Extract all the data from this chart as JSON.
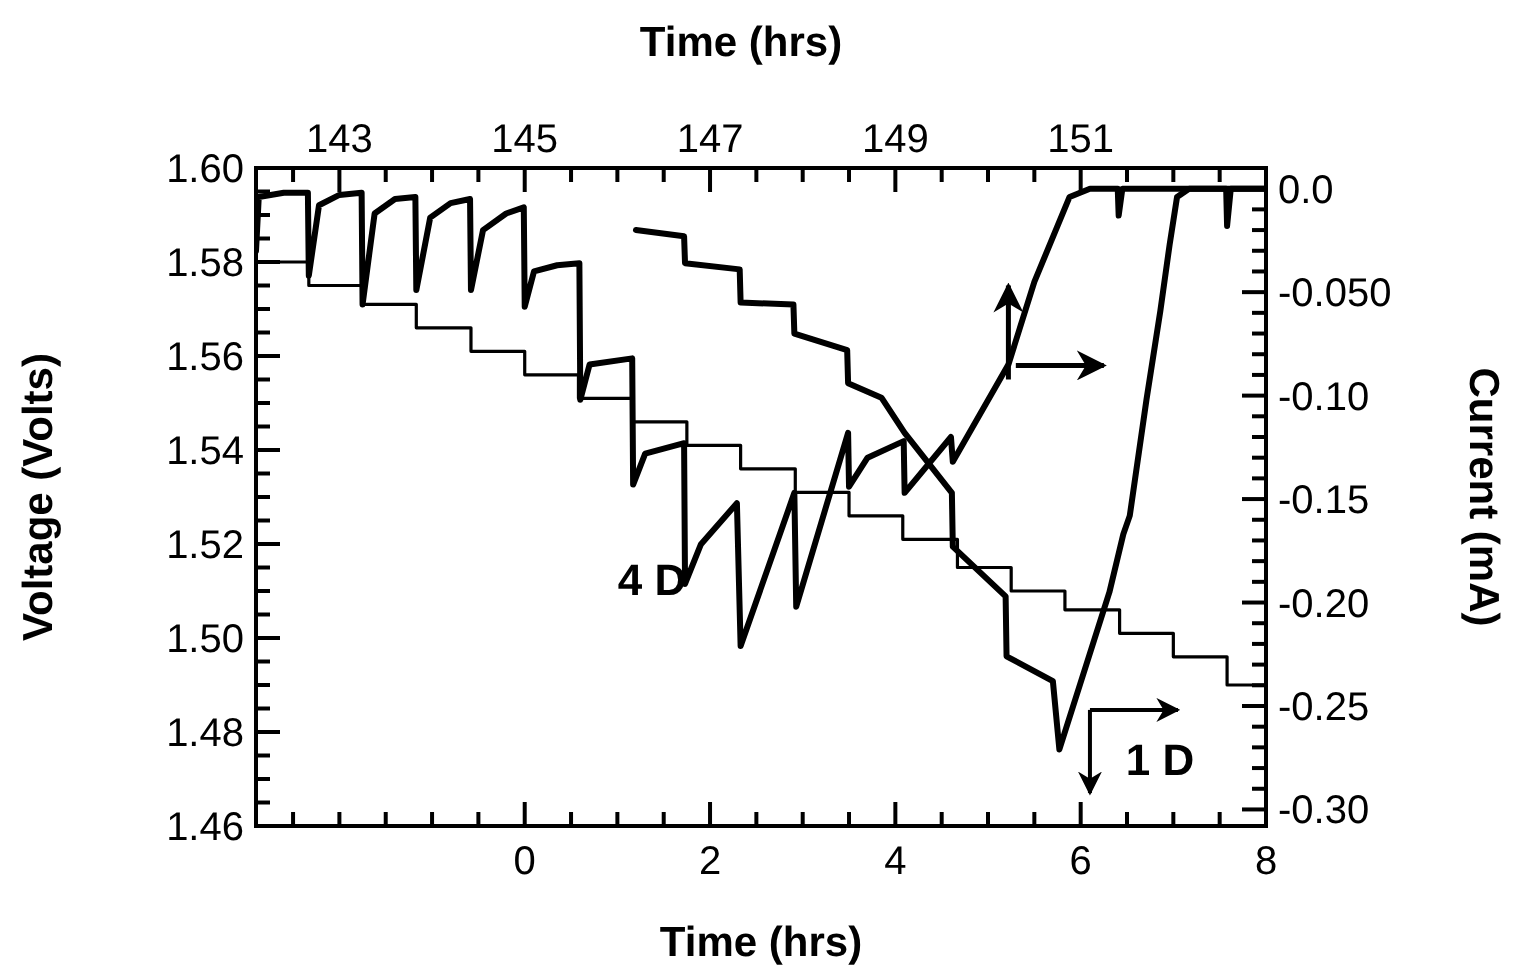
{
  "chart_data": {
    "type": "line",
    "xlabel": "Time (hrs)",
    "x2label": "Time (hrs)",
    "ylabel": "Voltage (Volts)",
    "y2label": "Current (mA)",
    "xlim": [
      -2.9,
      8
    ],
    "xticks": [
      {
        "value": -2.5,
        "label": null
      },
      {
        "value": -2,
        "label": null
      },
      {
        "value": -1.5,
        "label": null
      },
      {
        "value": -1,
        "label": null
      },
      {
        "value": -0.5,
        "label": null
      },
      0,
      {
        "value": 0.5,
        "label": null
      },
      {
        "value": 1,
        "label": null
      },
      {
        "value": 1.5,
        "label": null
      },
      2,
      {
        "value": 2.5,
        "label": null
      },
      {
        "value": 3,
        "label": null
      },
      {
        "value": 3.5,
        "label": null
      },
      4,
      {
        "value": 4.5,
        "label": null
      },
      {
        "value": 5,
        "label": null
      },
      {
        "value": 5.5,
        "label": null
      },
      6,
      {
        "value": 6.5,
        "label": null
      },
      {
        "value": 7,
        "label": null
      },
      {
        "value": 7.5,
        "label": null
      },
      8
    ],
    "x2lim": [
      142.1,
      153
    ],
    "x2ticks": [
      {
        "value": 142.5,
        "label": null
      },
      143,
      {
        "value": 143.5,
        "label": null
      },
      {
        "value": 144,
        "label": null
      },
      {
        "value": 144.5,
        "label": null
      },
      145,
      {
        "value": 145.5,
        "label": null
      },
      {
        "value": 146,
        "label": null
      },
      {
        "value": 146.5,
        "label": null
      },
      147,
      {
        "value": 147.5,
        "label": null
      },
      {
        "value": 148,
        "label": null
      },
      {
        "value": 148.5,
        "label": null
      },
      149,
      {
        "value": 149.5,
        "label": null
      },
      {
        "value": 150,
        "label": null
      },
      {
        "value": 150.5,
        "label": null
      },
      151,
      {
        "value": 151.5,
        "label": null
      },
      {
        "value": 152,
        "label": null
      },
      {
        "value": 152.5,
        "label": null
      }
    ],
    "ylim": [
      1.46,
      1.6
    ],
    "yticks": [
      {
        "value": 1.46,
        "label": "1.46"
      },
      {
        "value": 1.465,
        "label": null
      },
      {
        "value": 1.47,
        "label": null
      },
      {
        "value": 1.475,
        "label": null
      },
      {
        "value": 1.48,
        "label": "1.48"
      },
      {
        "value": 1.485,
        "label": null
      },
      {
        "value": 1.49,
        "label": null
      },
      {
        "value": 1.495,
        "label": null
      },
      {
        "value": 1.5,
        "label": "1.50"
      },
      {
        "value": 1.505,
        "label": null
      },
      {
        "value": 1.51,
        "label": null
      },
      {
        "value": 1.515,
        "label": null
      },
      {
        "value": 1.52,
        "label": "1.52"
      },
      {
        "value": 1.525,
        "label": null
      },
      {
        "value": 1.53,
        "label": null
      },
      {
        "value": 1.535,
        "label": null
      },
      {
        "value": 1.54,
        "label": "1.54"
      },
      {
        "value": 1.545,
        "label": null
      },
      {
        "value": 1.55,
        "label": null
      },
      {
        "value": 1.555,
        "label": null
      },
      {
        "value": 1.56,
        "label": "1.56"
      },
      {
        "value": 1.565,
        "label": null
      },
      {
        "value": 1.57,
        "label": null
      },
      {
        "value": 1.575,
        "label": null
      },
      {
        "value": 1.58,
        "label": "1.58"
      },
      {
        "value": 1.585,
        "label": null
      },
      {
        "value": 1.59,
        "label": null
      },
      {
        "value": 1.595,
        "label": null
      },
      {
        "value": 1.6,
        "label": "1.60"
      }
    ],
    "y2lim": [
      -0.308,
      0.01
    ],
    "y2ticks": [
      {
        "value": 0,
        "label": "0.0"
      },
      {
        "value": -0.01,
        "label": null
      },
      {
        "value": -0.02,
        "label": null
      },
      {
        "value": -0.03,
        "label": null
      },
      {
        "value": -0.04,
        "label": null
      },
      {
        "value": -0.05,
        "label": "-0.050"
      },
      {
        "value": -0.06,
        "label": null
      },
      {
        "value": -0.07,
        "label": null
      },
      {
        "value": -0.08,
        "label": null
      },
      {
        "value": -0.09,
        "label": null
      },
      {
        "value": -0.1,
        "label": "-0.10"
      },
      {
        "value": -0.11,
        "label": null
      },
      {
        "value": -0.12,
        "label": null
      },
      {
        "value": -0.13,
        "label": null
      },
      {
        "value": -0.14,
        "label": null
      },
      {
        "value": -0.15,
        "label": "-0.15"
      },
      {
        "value": -0.16,
        "label": null
      },
      {
        "value": -0.17,
        "label": null
      },
      {
        "value": -0.18,
        "label": null
      },
      {
        "value": -0.19,
        "label": null
      },
      {
        "value": -0.2,
        "label": "-0.20"
      },
      {
        "value": -0.21,
        "label": null
      },
      {
        "value": -0.22,
        "label": null
      },
      {
        "value": -0.23,
        "label": null
      },
      {
        "value": -0.24,
        "label": null
      },
      {
        "value": -0.25,
        "label": "-0.25"
      },
      {
        "value": -0.26,
        "label": null
      },
      {
        "value": -0.27,
        "label": null
      },
      {
        "value": -0.28,
        "label": null
      },
      {
        "value": -0.29,
        "label": null
      },
      {
        "value": -0.3,
        "label": "-0.30"
      }
    ],
    "series": [
      {
        "type": "step",
        "color": "#000000",
        "x": [
          -2.9,
          -2.33,
          -1.75,
          -1.17,
          -0.58,
          0,
          0.58,
          1.17,
          1.75,
          2.33,
          2.92,
          3.5,
          4.08,
          4.67,
          5.25,
          5.83,
          6.42,
          7.0,
          7.58,
          8
        ],
        "values": [
          1.58,
          1.575,
          1.571,
          1.566,
          1.561,
          1.556,
          1.551,
          1.546,
          1.541,
          1.536,
          1.531,
          1.526,
          1.521,
          1.515,
          1.51,
          1.506,
          1.501,
          1.496,
          1.49,
          1.49
        ]
      },
      {
        "axis": "y2",
        "color": "#000000",
        "x": [
          -2.9,
          -2.87,
          -2.6,
          -2.34,
          -2.33,
          -2.22,
          -2.0,
          -1.76,
          -1.75,
          -1.62,
          -1.4,
          -1.18,
          -1.17,
          -1.02,
          -0.8,
          -0.59,
          -0.58,
          -0.45,
          -0.2,
          -0.01,
          0,
          0.1,
          0.35,
          0.59,
          0.6,
          0.7,
          1.16,
          1.17,
          1.3,
          1.72,
          1.73,
          1.9,
          2.29,
          2.33,
          2.91,
          2.93,
          3.49,
          3.5,
          3.7,
          4.09,
          4.1,
          4.6,
          4.62,
          5.22,
          5.5,
          5.88,
          6.1,
          6.4,
          6.41,
          6.45,
          7.57,
          7.58,
          7.62,
          8
        ],
        "values": [
          -0.03,
          -0.004,
          -0.002,
          -0.002,
          -0.042,
          -0.008,
          -0.003,
          -0.002,
          -0.056,
          -0.012,
          -0.005,
          -0.004,
          -0.049,
          -0.014,
          -0.007,
          -0.005,
          -0.049,
          -0.02,
          -0.012,
          -0.009,
          -0.057,
          -0.04,
          -0.037,
          -0.036,
          -0.102,
          -0.085,
          -0.082,
          -0.143,
          -0.128,
          -0.123,
          -0.191,
          -0.172,
          -0.152,
          -0.221,
          -0.147,
          -0.202,
          -0.118,
          -0.144,
          -0.13,
          -0.122,
          -0.147,
          -0.12,
          -0.132,
          -0.085,
          -0.045,
          -0.004,
          0,
          0,
          -0.013,
          0,
          0,
          -0.018,
          0,
          0
        ]
      },
      {
        "axis": "y2",
        "color": "#000000",
        "x": [
          1.2,
          1.72,
          1.73,
          2.32,
          2.33,
          2.9,
          2.91,
          3.48,
          3.49,
          3.85,
          4.1,
          4.61,
          4.62,
          5.19,
          5.2,
          5.7,
          5.77,
          6.31,
          6.46,
          6.53,
          6.71,
          6.86,
          6.96,
          7.04,
          7.17,
          8
        ],
        "values": [
          -0.02,
          -0.023,
          -0.036,
          -0.039,
          -0.055,
          -0.056,
          -0.07,
          -0.078,
          -0.094,
          -0.101,
          -0.118,
          -0.147,
          -0.173,
          -0.197,
          -0.226,
          -0.238,
          -0.271,
          -0.195,
          -0.167,
          -0.158,
          -0.102,
          -0.059,
          -0.027,
          -0.004,
          0,
          0
        ]
      }
    ],
    "annotations": [
      "4 D",
      "1 D"
    ]
  }
}
